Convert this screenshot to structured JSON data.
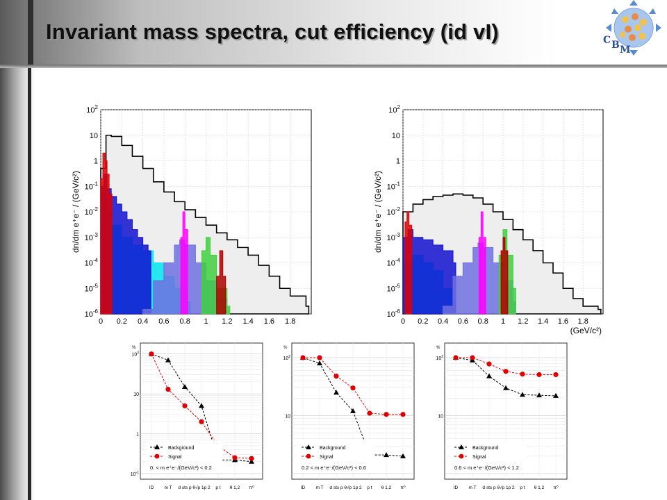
{
  "slide": {
    "title": "Invariant mass spectra, cut efficiency (id vI)",
    "logo_letters": [
      "C",
      "B",
      "M"
    ]
  },
  "chart_data": [
    {
      "type": "histogram",
      "panel": "top-left",
      "ylabel": "dn/dm_{e+e-} / (GeV/c^2)",
      "xlabel": "",
      "log_y": true,
      "xlim": [
        0,
        2.0
      ],
      "ylim": [
        1e-06,
        100
      ],
      "x_ticks": [
        "0",
        "0.2",
        "0.4",
        "0.6",
        "0.8",
        "1",
        "1.2",
        "1.4",
        "1.6",
        "1.8"
      ],
      "y_ticks": [
        "10^-6",
        "10^-5",
        "10^-4",
        "10^-3",
        "10^-2",
        "10^-1",
        "1",
        "10",
        "10^2"
      ],
      "grid": true,
      "series": [
        {
          "color": "#000000",
          "fill": "#eeeeee",
          "points": [
            [
              0.0,
              0.5
            ],
            [
              0.05,
              10
            ],
            [
              0.1,
              9
            ],
            [
              0.2,
              4
            ],
            [
              0.3,
              1.5
            ],
            [
              0.4,
              0.5
            ],
            [
              0.5,
              0.15
            ],
            [
              0.6,
              0.06
            ],
            [
              0.7,
              0.025
            ],
            [
              0.8,
              0.012
            ],
            [
              0.9,
              0.006
            ],
            [
              1.0,
              0.003
            ],
            [
              1.1,
              0.0015
            ],
            [
              1.2,
              0.0008
            ],
            [
              1.3,
              0.0004
            ],
            [
              1.4,
              0.0002
            ],
            [
              1.5,
              8e-05
            ],
            [
              1.6,
              3e-05
            ],
            [
              1.7,
              1e-05
            ],
            [
              1.8,
              5e-06
            ],
            [
              1.95,
              2e-06
            ]
          ]
        },
        {
          "color": "#00e5ee",
          "fill": "#00e5ee",
          "points": [
            [
              0.0,
              0.05
            ],
            [
              0.05,
              0.01
            ],
            [
              0.1,
              0.003
            ],
            [
              0.2,
              0.001
            ],
            [
              0.3,
              0.0005
            ],
            [
              0.4,
              0.0003
            ],
            [
              0.5,
              0.0001
            ],
            [
              0.6,
              3e-05
            ],
            [
              0.7,
              1e-05
            ],
            [
              0.8,
              3e-06
            ],
            [
              0.85,
              1e-06
            ]
          ]
        },
        {
          "color": "#1010d0",
          "fill": "#1010d0",
          "points": [
            [
              0.0,
              0.1
            ],
            [
              0.03,
              0.3
            ],
            [
              0.06,
              0.08
            ],
            [
              0.1,
              0.04
            ],
            [
              0.15,
              0.02
            ],
            [
              0.2,
              0.01
            ],
            [
              0.25,
              0.005
            ],
            [
              0.3,
              0.002
            ],
            [
              0.35,
              0.001
            ],
            [
              0.4,
              0.0005
            ],
            [
              0.45,
              0.0003
            ]
          ]
        },
        {
          "color": "#e00000",
          "fill": "#e00000",
          "points": [
            [
              0.0,
              0.2
            ],
            [
              0.02,
              2
            ],
            [
              0.04,
              1
            ],
            [
              0.06,
              0.3
            ],
            [
              0.08,
              0.05
            ]
          ]
        },
        {
          "color": "#6b6bdd",
          "fill": "#7070e0",
          "points": [
            [
              0.4,
              1.5e-06
            ],
            [
              0.5,
              2e-05
            ],
            [
              0.6,
              0.0001
            ],
            [
              0.7,
              0.0005
            ],
            [
              0.75,
              0.0008
            ],
            [
              0.8,
              0.0005
            ],
            [
              0.9,
              0.0001
            ],
            [
              1.0,
              2e-05
            ],
            [
              1.1,
              4e-06
            ],
            [
              1.2,
              1e-06
            ]
          ]
        },
        {
          "color": "#ff00ff",
          "fill": "#ff00ff",
          "points": [
            [
              0.76,
              0.001
            ],
            [
              0.78,
              0.01
            ],
            [
              0.8,
              0.002
            ]
          ]
        },
        {
          "color": "#40d040",
          "fill": "#40d040",
          "points": [
            [
              0.96,
              0.0003
            ],
            [
              1.0,
              0.001
            ],
            [
              1.04,
              0.0002
            ],
            [
              1.1,
              1e-05
            ],
            [
              1.2,
              2e-06
            ]
          ]
        },
        {
          "color": "#b00000",
          "fill": "#b00000",
          "points": [
            [
              1.1,
              3e-05
            ],
            [
              1.13,
              0.0003
            ],
            [
              1.16,
              3e-05
            ]
          ]
        }
      ]
    },
    {
      "type": "histogram",
      "panel": "top-right",
      "ylabel": "dn/dm_{e+e-} / (GeV/c^2)",
      "xlabel": "(GeV/c^2)",
      "log_y": true,
      "xlim": [
        0,
        2.0
      ],
      "ylim": [
        1e-06,
        100
      ],
      "x_ticks": [
        "0",
        "0.2",
        "0.4",
        "0.6",
        "0.8",
        "1",
        "1.2",
        "1.4",
        "1.6",
        "1.8"
      ],
      "y_ticks": [
        "10^-6",
        "10^-5",
        "10^-4",
        "10^-3",
        "10^-2",
        "10^-1",
        "1",
        "10",
        "10^2"
      ],
      "grid": true,
      "series": [
        {
          "color": "#000000",
          "fill": "#eeeeee",
          "points": [
            [
              0.0,
              0.01
            ],
            [
              0.1,
              0.02
            ],
            [
              0.2,
              0.03
            ],
            [
              0.3,
              0.04
            ],
            [
              0.4,
              0.045
            ],
            [
              0.5,
              0.05
            ],
            [
              0.6,
              0.045
            ],
            [
              0.7,
              0.035
            ],
            [
              0.8,
              0.02
            ],
            [
              0.9,
              0.01
            ],
            [
              1.0,
              0.005
            ],
            [
              1.1,
              0.002
            ],
            [
              1.2,
              0.0008
            ],
            [
              1.3,
              0.0003
            ],
            [
              1.4,
              0.0001
            ],
            [
              1.5,
              4e-05
            ],
            [
              1.6,
              1e-05
            ],
            [
              1.7,
              4e-06
            ],
            [
              1.8,
              2e-06
            ],
            [
              1.95,
              1.5e-06
            ]
          ]
        },
        {
          "color": "#00e5ee",
          "fill": "#00e5ee",
          "points": [
            [
              0.0,
              0.0001
            ],
            [
              0.1,
              0.0002
            ],
            [
              0.2,
              0.0001
            ],
            [
              0.3,
              5e-05
            ],
            [
              0.4,
              1e-05
            ],
            [
              0.5,
              3e-06
            ]
          ]
        },
        {
          "color": "#1010d0",
          "fill": "#1010d0",
          "points": [
            [
              0.0,
              0.001
            ],
            [
              0.05,
              0.002
            ],
            [
              0.1,
              0.001
            ],
            [
              0.2,
              0.0008
            ],
            [
              0.3,
              0.0005
            ],
            [
              0.4,
              0.0003
            ],
            [
              0.5,
              0.0001
            ]
          ]
        },
        {
          "color": "#e00000",
          "fill": "#e00000",
          "points": [
            [
              0.02,
              0.004
            ],
            [
              0.04,
              0.01
            ],
            [
              0.06,
              0.003
            ]
          ]
        },
        {
          "color": "#6b6bdd",
          "fill": "#7070e0",
          "points": [
            [
              0.4,
              2e-06
            ],
            [
              0.5,
              3e-05
            ],
            [
              0.6,
              0.0001
            ],
            [
              0.7,
              0.0004
            ],
            [
              0.75,
              0.0006
            ],
            [
              0.8,
              0.0004
            ],
            [
              0.9,
              0.0001
            ],
            [
              1.0,
              2e-05
            ],
            [
              1.1,
              3e-06
            ]
          ]
        },
        {
          "color": "#ff00ff",
          "fill": "#ff00ff",
          "points": [
            [
              0.76,
              0.001
            ],
            [
              0.78,
              0.01
            ],
            [
              0.8,
              0.001
            ]
          ]
        },
        {
          "color": "#40d040",
          "fill": "#40d040",
          "points": [
            [
              0.96,
              0.0002
            ],
            [
              1.0,
              0.002
            ],
            [
              1.04,
              0.0002
            ],
            [
              1.1,
              1e-05
            ]
          ]
        },
        {
          "color": "#b00000",
          "fill": "#b00000",
          "points": [
            [
              0.98,
              0.0003
            ],
            [
              1.0,
              0.001
            ],
            [
              1.02,
              0.0003
            ]
          ]
        }
      ]
    },
    {
      "type": "line",
      "panel": "bottom-left",
      "ylabel": "%",
      "log_y": true,
      "ylim": [
        0.1,
        100
      ],
      "categories": [
        "ID",
        "m_T",
        "d_sts p",
        "θ√p_1p_2",
        "p_t",
        "θ_1,2",
        "π^0"
      ],
      "y_ticks": [
        "10^2",
        "10",
        "1",
        "10^-1"
      ],
      "range_label": "0. < m_{e+e-}/(GeV/c^2) < 0.2",
      "legend": [
        "Background",
        "Signal"
      ],
      "series": [
        {
          "name": "Background",
          "color": "#000000",
          "marker": "triangle",
          "values": [
            100,
            70,
            15,
            5,
            0.22,
            0.22,
            0.2
          ]
        },
        {
          "name": "Signal",
          "color": "#e00000",
          "marker": "circle",
          "values": [
            100,
            13,
            5,
            2,
            0.5,
            0.25,
            0.24
          ]
        }
      ]
    },
    {
      "type": "line",
      "panel": "bottom-middle",
      "ylabel": "%",
      "log_y": true,
      "ylim": [
        1,
        100
      ],
      "categories": [
        "ID",
        "m_T",
        "d_sts p",
        "θ√p_1p_2",
        "p_t",
        "θ_1,2",
        "π^0"
      ],
      "y_ticks": [
        "10^2",
        "10"
      ],
      "range_label": "0.2 < m_{e+e-}/(GeV/c^2) < 0.6",
      "legend": [
        "Background",
        "Signal"
      ],
      "series": [
        {
          "name": "Background",
          "color": "#000000",
          "marker": "triangle",
          "values": [
            100,
            80,
            25,
            12,
            2.1,
            2.1,
            2.0
          ]
        },
        {
          "name": "Signal",
          "color": "#e00000",
          "marker": "circle",
          "values": [
            100,
            100,
            48,
            30,
            11,
            10.5,
            10.5
          ]
        }
      ]
    },
    {
      "type": "line",
      "panel": "bottom-right",
      "ylabel": "%",
      "log_y": true,
      "ylim": [
        1,
        100
      ],
      "categories": [
        "ID",
        "m_T",
        "d_sts p",
        "θ√p_1p_2",
        "p_t",
        "θ_1,2",
        "π^0"
      ],
      "y_ticks": [
        "10^2",
        "10"
      ],
      "range_label": "0.6 < m_{e+e-}/(GeV/c^2) < 1.2",
      "legend": [
        "Background",
        "Signal"
      ],
      "series": [
        {
          "name": "Background",
          "color": "#000000",
          "marker": "triangle",
          "values": [
            100,
            90,
            48,
            30,
            23,
            22.5,
            22
          ]
        },
        {
          "name": "Signal",
          "color": "#e00000",
          "marker": "circle",
          "values": [
            100,
            100,
            78,
            58,
            52,
            51,
            51
          ]
        }
      ]
    }
  ]
}
